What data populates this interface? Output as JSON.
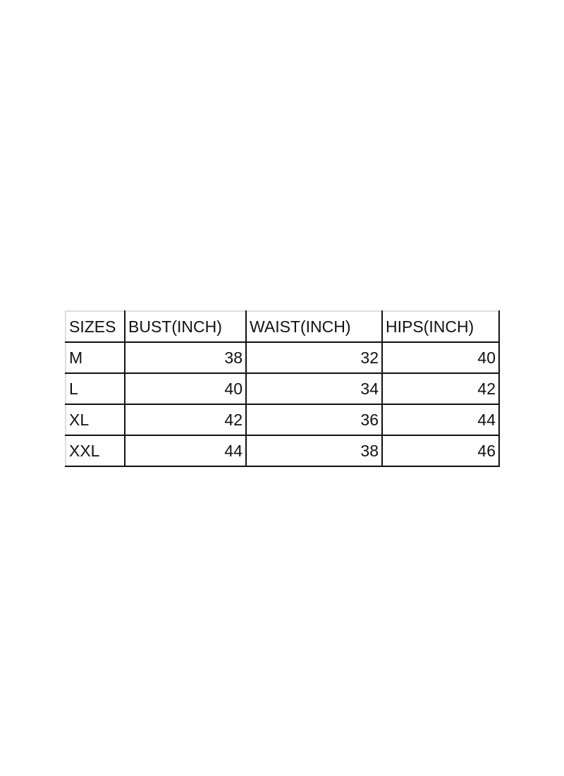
{
  "size_chart": {
    "headers": [
      "SIZES",
      "BUST(INCH)",
      "WAIST(INCH)",
      "HIPS(INCH)"
    ],
    "rows": [
      {
        "size": "M",
        "bust": "38",
        "waist": "32",
        "hips": "40"
      },
      {
        "size": "L",
        "bust": "40",
        "waist": "34",
        "hips": "42"
      },
      {
        "size": "XL",
        "bust": "42",
        "waist": "36",
        "hips": "44"
      },
      {
        "size": "XXL",
        "bust": "44",
        "waist": "38",
        "hips": "46"
      }
    ]
  }
}
